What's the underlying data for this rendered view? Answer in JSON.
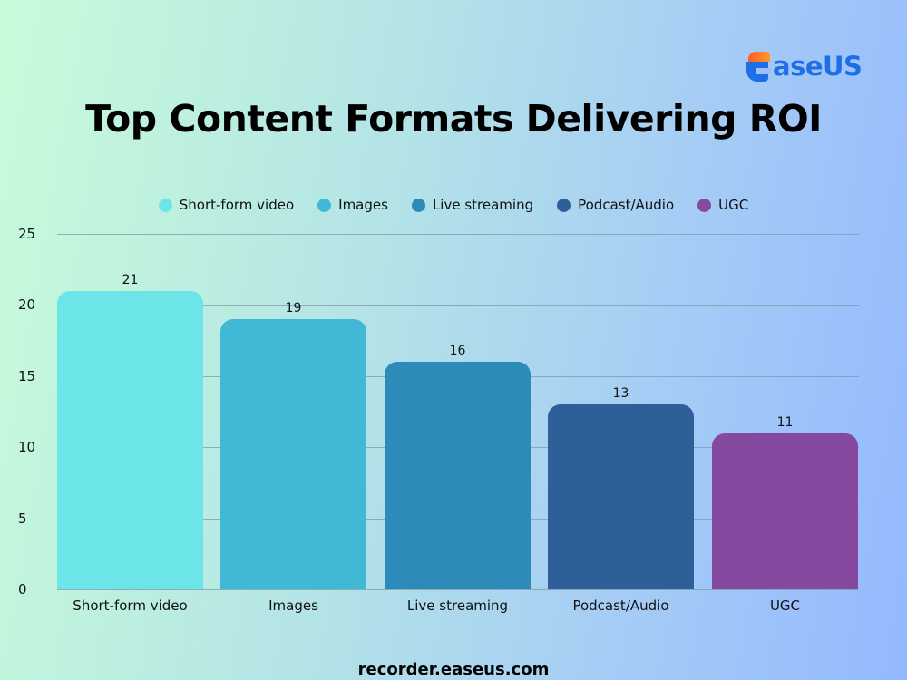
{
  "brand": {
    "logo_text": "aseUS",
    "logo_full": "EaseUS"
  },
  "title": "Top Content Formats Delivering ROI",
  "footer": "recorder.easeus.com",
  "colors": {
    "background_left": "#c8fcd9",
    "background_right": "#94b8ff",
    "brand_blue": "#1e6ee8",
    "brand_orange": "#ff7a2a"
  },
  "chart_data": {
    "type": "bar",
    "title": "Top Content Formats Delivering ROI",
    "xlabel": "",
    "ylabel": "",
    "categories": [
      "Short-form video",
      "Images",
      "Live streaming",
      "Podcast/Audio",
      "UGC"
    ],
    "values": [
      21,
      19,
      16,
      13,
      11
    ],
    "data_labels": [
      "21",
      "19",
      "16",
      "13",
      "11"
    ],
    "bar_colors": [
      "#6ce5e8",
      "#41b8d5",
      "#2d8bba",
      "#2f5f98",
      "#8549a0"
    ],
    "ylim": [
      0,
      25
    ],
    "yticks": [
      "0",
      "5",
      "10",
      "15",
      "20",
      "25"
    ],
    "grid": true,
    "legend_position": "top",
    "legend": [
      {
        "label": "Short-form video",
        "color": "#6ce5e8"
      },
      {
        "label": "Images",
        "color": "#41b8d5"
      },
      {
        "label": "Live streaming",
        "color": "#2d8bba"
      },
      {
        "label": "Podcast/Audio",
        "color": "#2f5f98"
      },
      {
        "label": "UGC",
        "color": "#8549a0"
      }
    ]
  }
}
